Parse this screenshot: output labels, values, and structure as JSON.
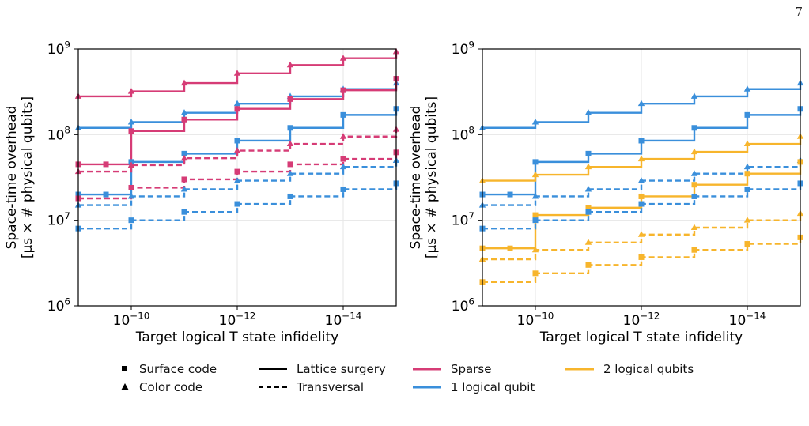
{
  "page_number": "7",
  "colors": {
    "sparse": "#d63c76",
    "one_logical_qubit": "#3a8fdb",
    "two_logical_qubits": "#f7b52c"
  },
  "legend": {
    "surface_code": "Surface code",
    "color_code": "Color code",
    "lattice_surgery": "Lattice surgery",
    "transversal": "Transversal",
    "sparse": "Sparse",
    "one_logical_qubit": "1 logical qubit",
    "two_logical_qubits": "2 logical qubits"
  },
  "chart_data": [
    {
      "type": "line",
      "panel": "left",
      "xlabel": "Target logical T state infidelity",
      "ylabel_line1": "Space-time overhead",
      "ylabel_line2": "[μs × # physical qubits]",
      "x_scale": "log-reversed",
      "y_scale": "log",
      "xlim": [
        1e-09,
        1e-15
      ],
      "ylim": [
        1000000.0,
        1000000000.0
      ],
      "xticks": [
        "10⁻¹⁰",
        "10⁻¹²",
        "10⁻¹⁴"
      ],
      "yticks": [
        "10⁶",
        "10⁷",
        "10⁸",
        "10⁹"
      ],
      "grid": true,
      "series": [
        {
          "color": "sparse",
          "code": "color",
          "protocol": "lattice surgery",
          "x": [
            1e-09,
            1e-10,
            1e-11,
            1e-12,
            1e-13,
            1e-14,
            1e-15
          ],
          "y": [
            280000000.0,
            320000000.0,
            400000000.0,
            520000000.0,
            650000000.0,
            780000000.0,
            930000000.0
          ]
        },
        {
          "color": "one_logical_qubit",
          "code": "color",
          "protocol": "lattice surgery",
          "x": [
            1e-09,
            1e-10,
            1e-11,
            1e-12,
            1e-13,
            1e-14,
            1e-15
          ],
          "y": [
            120000000.0,
            140000000.0,
            180000000.0,
            230000000.0,
            280000000.0,
            340000000.0,
            400000000.0
          ]
        },
        {
          "color": "sparse",
          "code": "surface",
          "protocol": "lattice surgery",
          "x": [
            1e-09,
            3e-10,
            1e-10,
            1e-11,
            1e-12,
            1e-13,
            1e-14,
            1e-15
          ],
          "y": [
            45000000.0,
            45000000.0,
            110000000.0,
            150000000.0,
            200000000.0,
            260000000.0,
            330000000.0,
            450000000.0
          ]
        },
        {
          "color": "one_logical_qubit",
          "code": "surface",
          "protocol": "lattice surgery",
          "x": [
            1e-09,
            3e-10,
            1e-10,
            1e-11,
            1e-12,
            1e-13,
            1e-14,
            1e-15
          ],
          "y": [
            20000000.0,
            20000000.0,
            48000000.0,
            60000000.0,
            85000000.0,
            120000000.0,
            170000000.0,
            200000000.0
          ]
        },
        {
          "color": "sparse",
          "code": "color",
          "protocol": "transversal",
          "x": [
            1e-09,
            1e-10,
            1e-11,
            1e-12,
            1e-13,
            1e-14,
            1e-15
          ],
          "y": [
            37000000.0,
            44000000.0,
            53000000.0,
            65000000.0,
            78000000.0,
            95000000.0,
            115000000.0
          ]
        },
        {
          "color": "sparse",
          "code": "surface",
          "protocol": "transversal",
          "x": [
            1e-09,
            1e-10,
            1e-11,
            1e-12,
            1e-13,
            1e-14,
            1e-15
          ],
          "y": [
            18000000.0,
            24000000.0,
            30000000.0,
            37000000.0,
            45000000.0,
            52000000.0,
            62000000.0
          ]
        },
        {
          "color": "one_logical_qubit",
          "code": "color",
          "protocol": "transversal",
          "x": [
            1e-09,
            1e-10,
            1e-11,
            1e-12,
            1e-13,
            1e-14,
            1e-15
          ],
          "y": [
            15000000.0,
            19000000.0,
            23000000.0,
            29000000.0,
            35000000.0,
            42000000.0,
            50000000.0
          ]
        },
        {
          "color": "one_logical_qubit",
          "code": "surface",
          "protocol": "transversal",
          "x": [
            1e-09,
            1e-10,
            1e-11,
            1e-12,
            1e-13,
            1e-14,
            1e-15
          ],
          "y": [
            8000000.0,
            10000000.0,
            12500000.0,
            15500000.0,
            19000000.0,
            23000000.0,
            27000000.0
          ]
        }
      ]
    },
    {
      "type": "line",
      "panel": "right",
      "xlabel": "Target logical T state infidelity",
      "ylabel_line1": "Space-time overhead",
      "ylabel_line2": "[μs × # physical qubits]",
      "x_scale": "log-reversed",
      "y_scale": "log",
      "xlim": [
        1e-09,
        1e-15
      ],
      "ylim": [
        1000000.0,
        1000000000.0
      ],
      "xticks": [
        "10⁻¹⁰",
        "10⁻¹²",
        "10⁻¹⁴"
      ],
      "yticks": [
        "10⁶",
        "10⁷",
        "10⁸",
        "10⁹"
      ],
      "grid": true,
      "series": [
        {
          "color": "one_logical_qubit",
          "code": "color",
          "protocol": "lattice surgery",
          "x": [
            1e-09,
            1e-10,
            1e-11,
            1e-12,
            1e-13,
            1e-14,
            1e-15
          ],
          "y": [
            120000000.0,
            140000000.0,
            180000000.0,
            230000000.0,
            280000000.0,
            340000000.0,
            400000000.0
          ]
        },
        {
          "color": "one_logical_qubit",
          "code": "surface",
          "protocol": "lattice surgery",
          "x": [
            1e-09,
            3e-10,
            1e-10,
            1e-11,
            1e-12,
            1e-13,
            1e-14,
            1e-15
          ],
          "y": [
            20000000.0,
            20000000.0,
            48000000.0,
            60000000.0,
            85000000.0,
            120000000.0,
            170000000.0,
            200000000.0
          ]
        },
        {
          "color": "two_logical_qubits",
          "code": "color",
          "protocol": "lattice surgery",
          "x": [
            1e-09,
            1e-10,
            1e-11,
            1e-12,
            1e-13,
            1e-14,
            1e-15
          ],
          "y": [
            29000000.0,
            34000000.0,
            42000000.0,
            52000000.0,
            63000000.0,
            78000000.0,
            95000000.0
          ]
        },
        {
          "color": "one_logical_qubit",
          "code": "color",
          "protocol": "transversal",
          "x": [
            1e-09,
            1e-10,
            1e-11,
            1e-12,
            1e-13,
            1e-14,
            1e-15
          ],
          "y": [
            15000000.0,
            19000000.0,
            23000000.0,
            29000000.0,
            35000000.0,
            42000000.0,
            50000000.0
          ]
        },
        {
          "color": "two_logical_qubits",
          "code": "surface",
          "protocol": "lattice surgery",
          "x": [
            1e-09,
            3e-10,
            1e-10,
            1e-11,
            1e-12,
            1e-13,
            1e-14,
            1e-15
          ],
          "y": [
            4700000.0,
            4700000.0,
            11500000.0,
            14000000.0,
            19000000.0,
            26000000.0,
            35000000.0,
            48000000.0
          ]
        },
        {
          "color": "one_logical_qubit",
          "code": "surface",
          "protocol": "transversal",
          "x": [
            1e-09,
            1e-10,
            1e-11,
            1e-12,
            1e-13,
            1e-14,
            1e-15
          ],
          "y": [
            8000000.0,
            10000000.0,
            12500000.0,
            15500000.0,
            19000000.0,
            23000000.0,
            27000000.0
          ]
        },
        {
          "color": "two_logical_qubits",
          "code": "color",
          "protocol": "transversal",
          "x": [
            1e-09,
            1e-10,
            1e-11,
            1e-12,
            1e-13,
            1e-14,
            1e-15
          ],
          "y": [
            3500000.0,
            4500000.0,
            5500000.0,
            6800000.0,
            8200000.0,
            10000000.0,
            12000000.0
          ]
        },
        {
          "color": "two_logical_qubits",
          "code": "surface",
          "protocol": "transversal",
          "x": [
            1e-09,
            1e-10,
            1e-11,
            1e-12,
            1e-13,
            1e-14,
            1e-15
          ],
          "y": [
            1900000.0,
            2400000.0,
            3000000.0,
            3700000.0,
            4500000.0,
            5300000.0,
            6300000.0
          ]
        }
      ]
    }
  ]
}
